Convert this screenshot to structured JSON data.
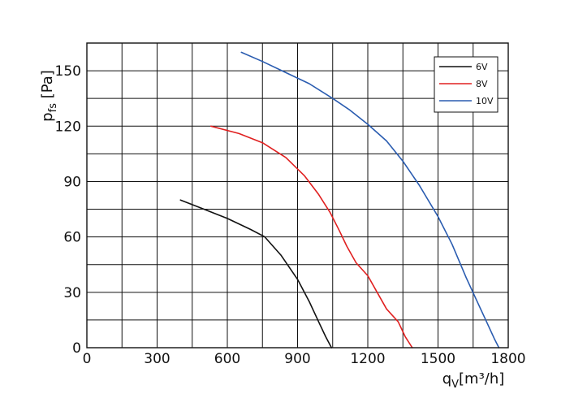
{
  "chart_data": {
    "type": "line",
    "xlabel": {
      "main": "q",
      "sub": "V",
      "rest": "[m³/h]"
    },
    "ylabel": {
      "main": "p",
      "sub": "fs",
      "rest": " [Pa]"
    },
    "xlim": [
      0,
      1800
    ],
    "ylim": [
      0,
      165
    ],
    "x_ticks": [
      0,
      300,
      600,
      900,
      1200,
      1500,
      1800
    ],
    "y_ticks": [
      0,
      30,
      60,
      90,
      120,
      150
    ],
    "x_tick_labels": [
      "0",
      "300",
      "600",
      "900",
      "1200",
      "1500",
      "1800"
    ],
    "y_tick_labels": [
      "0",
      "30",
      "60",
      "90",
      "120",
      "150"
    ],
    "x_grid_step": 150,
    "y_grid_step": 15,
    "grid": true,
    "legend_position": "top-right",
    "series": [
      {
        "name": "6V",
        "color": "#111111",
        "points": [
          [
            400,
            80
          ],
          [
            500,
            75
          ],
          [
            600,
            70
          ],
          [
            700,
            64
          ],
          [
            760,
            60
          ],
          [
            830,
            50
          ],
          [
            900,
            37
          ],
          [
            950,
            25
          ],
          [
            990,
            14
          ],
          [
            1020,
            6
          ],
          [
            1045,
            0
          ]
        ]
      },
      {
        "name": "8V",
        "color": "#e02020",
        "points": [
          [
            530,
            120
          ],
          [
            650,
            116
          ],
          [
            750,
            111
          ],
          [
            850,
            103
          ],
          [
            930,
            93
          ],
          [
            990,
            83
          ],
          [
            1040,
            73
          ],
          [
            1080,
            63
          ],
          [
            1110,
            55
          ],
          [
            1150,
            46
          ],
          [
            1200,
            39
          ],
          [
            1240,
            30
          ],
          [
            1280,
            21
          ],
          [
            1330,
            14
          ],
          [
            1360,
            6
          ],
          [
            1390,
            0
          ]
        ]
      },
      {
        "name": "10V",
        "color": "#2a5cb0",
        "points": [
          [
            660,
            160
          ],
          [
            750,
            155
          ],
          [
            850,
            149
          ],
          [
            950,
            143
          ],
          [
            1050,
            135
          ],
          [
            1120,
            129
          ],
          [
            1200,
            121
          ],
          [
            1280,
            112
          ],
          [
            1350,
            101
          ],
          [
            1420,
            88
          ],
          [
            1500,
            71
          ],
          [
            1560,
            56
          ],
          [
            1620,
            38
          ],
          [
            1660,
            27
          ],
          [
            1700,
            16
          ],
          [
            1740,
            5
          ],
          [
            1760,
            0
          ]
        ]
      }
    ]
  }
}
